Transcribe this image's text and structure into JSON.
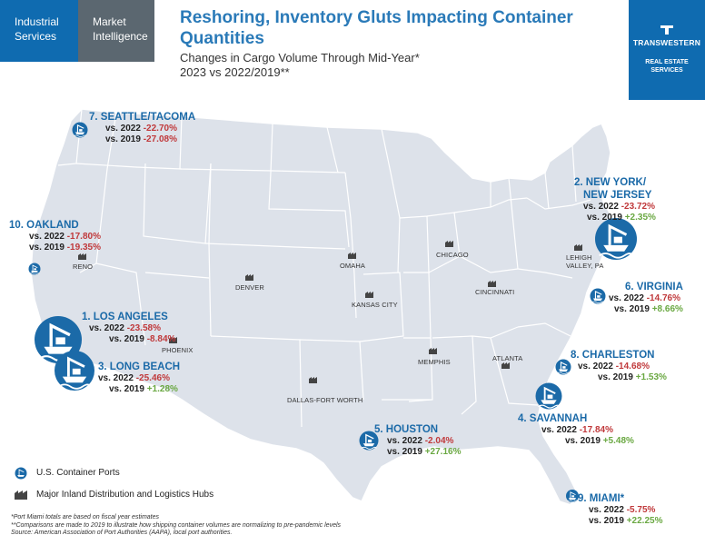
{
  "header": {
    "tab_industrial": "Industrial Services",
    "tab_market": "Market Intelligence",
    "title": "Reshoring, Inventory Gluts Impacting Container Quantities",
    "subtitle_line1": "Changes in Cargo Volume Through Mid-Year*",
    "subtitle_line2": "2023 vs 2022/2019**",
    "brand_name": "TRANSWESTERN",
    "brand_tag": "REAL ESTATE SERVICES",
    "brand_color": "#0f6bb0"
  },
  "ports": [
    {
      "id": "seattle",
      "title": "7. SEATTLE/TACOMA",
      "vs2022_label": "vs. 2022",
      "vs2022": "-22.70%",
      "vs2019_label": "vs. 2019",
      "vs2019": "-27.08%"
    },
    {
      "id": "newyork",
      "title": "2. NEW YORK/",
      "title2": "NEW JERSEY",
      "vs2022_label": "vs. 2022",
      "vs2022": "-23.72%",
      "vs2019_label": "vs. 2019",
      "vs2019": "+2.35%"
    },
    {
      "id": "oakland",
      "title": "10. OAKLAND",
      "vs2022_label": "vs. 2022",
      "vs2022": "-17.80%",
      "vs2019_label": "vs. 2019",
      "vs2019": "-19.35%"
    },
    {
      "id": "virginia",
      "title": "6. VIRGINIA",
      "vs2022_label": "vs. 2022",
      "vs2022": "-14.76%",
      "vs2019_label": "vs. 2019",
      "vs2019": "+8.66%"
    },
    {
      "id": "losangeles",
      "title": "1. LOS ANGELES",
      "vs2022_label": "vs. 2022",
      "vs2022": "-23.58%",
      "vs2019_label": "vs. 2019",
      "vs2019": "-8.84%"
    },
    {
      "id": "longbeach",
      "title": "3. LONG BEACH",
      "vs2022_label": "vs. 2022",
      "vs2022": "-25.46%",
      "vs2019_label": "vs. 2019",
      "vs2019": "+1.28%"
    },
    {
      "id": "charleston",
      "title": "8. CHARLESTON",
      "vs2022_label": "vs. 2022",
      "vs2022": "-14.68%",
      "vs2019_label": "vs. 2019",
      "vs2019": "+1.53%"
    },
    {
      "id": "savannah",
      "title": "4. SAVANNAH",
      "vs2022_label": "vs. 2022",
      "vs2022": "-17.84%",
      "vs2019_label": "vs. 2019",
      "vs2019": "+5.48%"
    },
    {
      "id": "houston",
      "title": "5. HOUSTON",
      "vs2022_label": "vs. 2022",
      "vs2022": "-2.04%",
      "vs2019_label": "vs. 2019",
      "vs2019": "+27.16%"
    },
    {
      "id": "miami",
      "title": "9. MIAMI*",
      "vs2022_label": "vs. 2022",
      "vs2022": "-5.75%",
      "vs2019_label": "vs. 2019",
      "vs2019": "+22.25%"
    }
  ],
  "hubs": {
    "reno": "RENO",
    "denver": "DENVER",
    "omaha": "OMAHA",
    "chicago": "CHICAGO",
    "lehigh1": "LEHIGH",
    "lehigh2": "VALLEY, PA",
    "kansascity": "KANSAS CITY",
    "cincinnati": "CINCINNATI",
    "phoenix": "PHOENIX",
    "memphis": "MEMPHIS",
    "atlanta": "ATLANTA",
    "dallas": "DALLAS-FORT WORTH"
  },
  "legend": {
    "ports": "U.S. Container Ports",
    "hubs": "Major Inland Distribution and Logistics Hubs"
  },
  "footnotes": {
    "line1": "*Port Miami totals are based on fiscal year estimates",
    "line2": "**Comparisons are made to 2019 to illustrate how shipping container volumes are normalizing to pre-pandemic levels",
    "line3": "Source: American Association of Port Authorities (AAPA), local port authorities."
  },
  "colors": {
    "negative": "#c0393b",
    "positive": "#6aa842",
    "port_icon": "#1b6aa8",
    "map_fill": "#dde2ea",
    "map_border": "#ffffff"
  }
}
